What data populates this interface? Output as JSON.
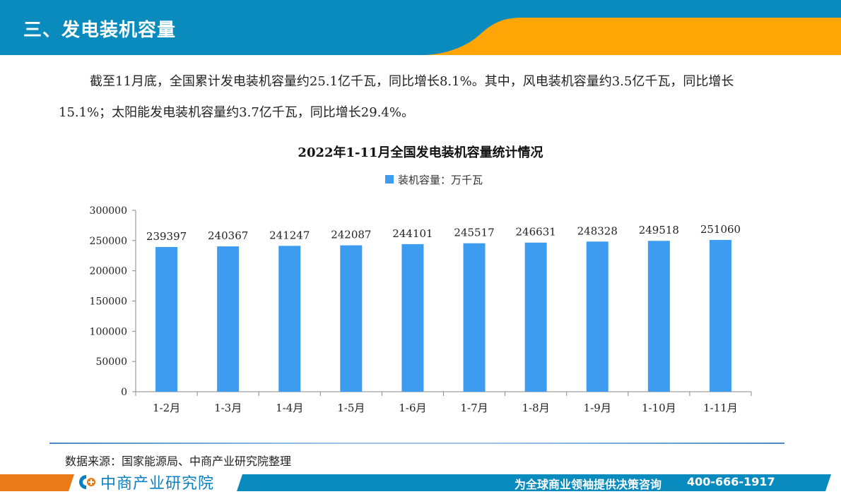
{
  "header": {
    "title": "三、发电装机容量",
    "colors": {
      "blue": "#0a8bbd",
      "orange": "#ffa505"
    }
  },
  "intro": {
    "text": "截至11月底，全国累计发电装机容量约25.1亿千瓦，同比增长8.1%。其中，风电装机容量约3.5亿千瓦，同比增长15.1%；太阳能发电装机容量约3.7亿千瓦，同比增长29.4%。"
  },
  "chart_data": {
    "type": "bar",
    "title": "2022年1-11月全国发电装机容量统计情况",
    "legend": [
      "装机容量：万千瓦"
    ],
    "legend_position": "top",
    "categories": [
      "1-2月",
      "1-3月",
      "1-4月",
      "1-5月",
      "1-6月",
      "1-7月",
      "1-8月",
      "1-9月",
      "1-10月",
      "1-11月"
    ],
    "series": [
      {
        "name": "装机容量：万千瓦",
        "color": "#3d9cf0",
        "values": [
          239397,
          240367,
          241247,
          242087,
          244101,
          245517,
          246631,
          248328,
          249518,
          251060
        ]
      }
    ],
    "xlabel": "",
    "ylabel": "",
    "ylim": [
      0,
      300000
    ],
    "yticks": [
      0,
      50000,
      100000,
      150000,
      200000,
      250000,
      300000
    ],
    "grid": false,
    "data_labels": true
  },
  "footer": {
    "source": "数据来源：国家能源局、中商产业研究院整理",
    "brand": "中商产业研究院",
    "slogan": "为全球商业领袖提供决策咨询",
    "phone": "400-666-1917",
    "colors": {
      "orange": "#ea7a17",
      "blue": "#0a8bbd",
      "brand_text": "#0a7fc2"
    }
  }
}
